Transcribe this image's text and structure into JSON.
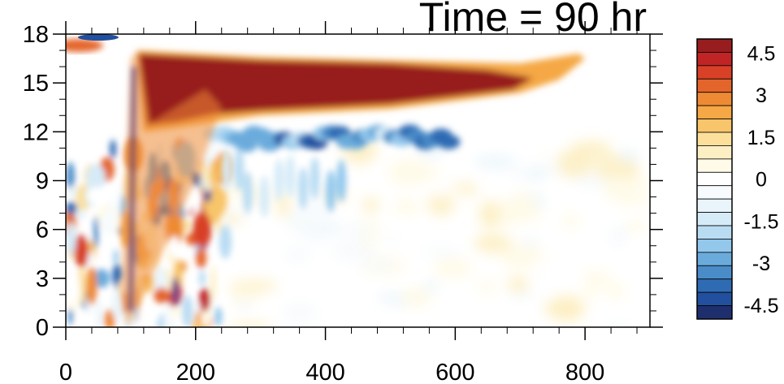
{
  "chart_data": {
    "type": "heatmap",
    "title": "Time = 90 hr",
    "xlabel": "",
    "ylabel": "",
    "xlim": [
      0,
      900
    ],
    "ylim": [
      0,
      18
    ],
    "x_ticks": [
      0,
      200,
      400,
      600,
      800
    ],
    "x_tick_labels": [
      "0",
      "200",
      "400",
      "600",
      "800"
    ],
    "y_ticks": [
      0,
      3,
      6,
      9,
      12,
      15,
      18
    ],
    "y_tick_labels": [
      "0",
      "3",
      "6",
      "9",
      "12",
      "15",
      "18"
    ],
    "colorbar": {
      "levels": [
        -5,
        -4.5,
        -4,
        -3.5,
        -3,
        -2.5,
        -2,
        -1.5,
        -1,
        -0.5,
        0,
        0.5,
        1,
        1.5,
        2,
        2.5,
        3,
        3.5,
        4,
        4.5,
        5
      ],
      "labels": [
        "4.5",
        "3",
        "1.5",
        "0",
        "-1.5",
        "-3",
        "-4.5"
      ],
      "label_values": [
        4.5,
        3,
        1.5,
        0,
        -1.5,
        -3,
        -4.5
      ],
      "colors": [
        "#1f2f6e",
        "#22509e",
        "#2f6bb3",
        "#4a8cc8",
        "#6aabdc",
        "#93c8ec",
        "#b9dcf3",
        "#d6ebf8",
        "#eaf5fb",
        "#f7fbfd",
        "#ffffff",
        "#fffbe8",
        "#fdefc4",
        "#fbdf9b",
        "#f8c56b",
        "#f5a845",
        "#ee8a33",
        "#e4652b",
        "#d84028",
        "#c02425",
        "#971d1f"
      ]
    },
    "features": [
      {
        "desc": "strong positive band",
        "x": [
          110,
          720
        ],
        "y": [
          13.5,
          16.5
        ],
        "value": 5
      },
      {
        "desc": "negative band below",
        "x": [
          230,
          600
        ],
        "y": [
          11.0,
          12.5
        ],
        "value": -3.5
      },
      {
        "desc": "vertical front",
        "x": [
          100,
          240
        ],
        "y": [
          0,
          16.5
        ],
        "value": 4
      },
      {
        "desc": "near-surface noise",
        "x": [
          0,
          260
        ],
        "y": [
          0,
          9
        ],
        "value": 2.5
      }
    ]
  }
}
